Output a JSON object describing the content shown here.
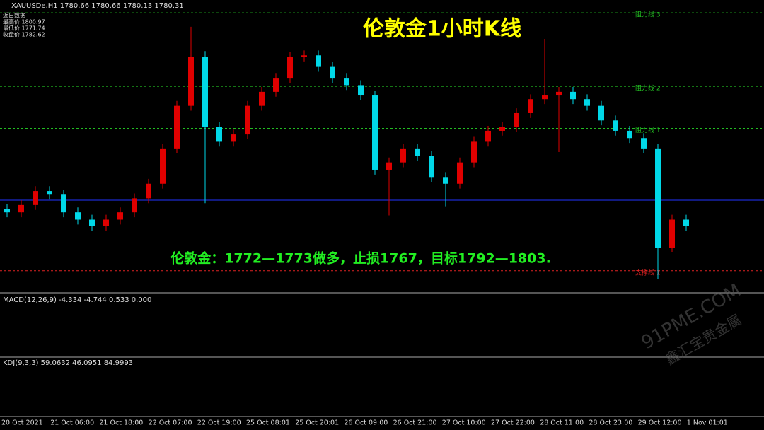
{
  "chart_data": {
    "type": "candlestick",
    "title": "伦敦金1小时K线",
    "symbol_header": "XAUUSDe,H1  1780.66 1780.66 1780.13 1780.31",
    "info": [
      "近日数据",
      "最高价 1800.97",
      "最低价 1771.74",
      "收盘价 1782.62"
    ],
    "annotation": "伦敦金：1772—1773做多，止损1767，目标1792—1803.",
    "up_color": "#e00000",
    "down_color": "#00d8e8",
    "ylim": [
      1769.5,
      1817.4
    ],
    "open": [
      1783.0,
      1782.5,
      1783.7,
      1786.0,
      1785.4,
      1782.5,
      1781.3,
      1780.2,
      1781.3,
      1782.5,
      1784.8,
      1787.2,
      1793.0,
      1800.0,
      1808.1,
      1796.5,
      1794.1,
      1795.3,
      1800.0,
      1802.3,
      1804.6,
      1808.1,
      1808.3,
      1806.4,
      1804.6,
      1803.4,
      1801.7,
      1789.5,
      1790.7,
      1793.0,
      1791.8,
      1788.3,
      1787.2,
      1790.7,
      1794.1,
      1795.9,
      1796.5,
      1798.8,
      1801.1,
      1801.7,
      1802.3,
      1801.1,
      1800.0,
      1797.6,
      1795.9,
      1794.7,
      1793.0,
      1776.7,
      1781.3
    ],
    "high": [
      1783.8,
      1784.5,
      1786.8,
      1786.8,
      1786.2,
      1783.3,
      1782.1,
      1782.1,
      1783.3,
      1785.6,
      1788.0,
      1793.8,
      1800.8,
      1813.0,
      1809.0,
      1797.3,
      1796.1,
      1800.8,
      1803.1,
      1805.4,
      1808.9,
      1809.1,
      1809.1,
      1807.2,
      1805.4,
      1804.2,
      1802.5,
      1791.5,
      1793.8,
      1793.8,
      1792.6,
      1789.1,
      1791.5,
      1794.9,
      1796.7,
      1797.3,
      1799.6,
      1801.9,
      1811.0,
      1803.1,
      1803.1,
      1801.9,
      1800.8,
      1798.4,
      1796.7,
      1795.5,
      1793.8,
      1782.1,
      1782.1
    ],
    "low": [
      1781.7,
      1781.7,
      1782.9,
      1784.6,
      1781.7,
      1780.5,
      1779.4,
      1779.4,
      1780.5,
      1781.7,
      1784.0,
      1786.4,
      1792.2,
      1799.2,
      1784.0,
      1793.3,
      1793.3,
      1794.5,
      1799.2,
      1801.5,
      1803.8,
      1807.3,
      1805.6,
      1803.8,
      1802.6,
      1800.9,
      1788.7,
      1782.0,
      1789.9,
      1791.0,
      1787.5,
      1783.5,
      1786.4,
      1789.9,
      1793.3,
      1795.1,
      1795.7,
      1798.0,
      1800.3,
      1792.4,
      1800.3,
      1799.2,
      1796.8,
      1795.1,
      1793.9,
      1792.2,
      1771.5,
      1775.9,
      1779.4
    ],
    "close": [
      1782.5,
      1783.7,
      1786.0,
      1785.4,
      1782.5,
      1781.3,
      1780.2,
      1781.3,
      1782.5,
      1784.8,
      1787.2,
      1793.0,
      1800.0,
      1808.1,
      1796.5,
      1794.1,
      1795.3,
      1800.0,
      1802.3,
      1804.6,
      1808.1,
      1808.3,
      1806.4,
      1804.6,
      1803.4,
      1801.7,
      1789.5,
      1790.7,
      1793.0,
      1791.8,
      1788.3,
      1787.2,
      1790.7,
      1794.1,
      1795.9,
      1796.5,
      1798.8,
      1801.1,
      1801.7,
      1802.3,
      1801.1,
      1800.0,
      1797.6,
      1795.9,
      1794.7,
      1793.0,
      1776.7,
      1781.3,
      1780.2
    ],
    "levels": [
      {
        "label": "阻力线 3",
        "value": 1815.3,
        "color": "#22bb22"
      },
      {
        "label": "阻力线 2",
        "value": 1803.2,
        "color": "#22bb22"
      },
      {
        "label": "阻力线 1",
        "value": 1796.3,
        "color": "#22bb22"
      },
      {
        "value": 1784.5,
        "color": "#2233ff"
      },
      {
        "label": "支撑线 1",
        "value": 1772.9,
        "color": "#dd2222"
      }
    ],
    "macd_header": "MACD(12,26,9) -4.334 -4.744 0.533 0.000",
    "kdj_header": "KDJ(9,3,3) 59.0632 46.0951 84.9993",
    "x_labels": [
      "20 Oct 2021",
      "21 Oct 06:00",
      "21 Oct 18:00",
      "22 Oct 07:00",
      "22 Oct 19:00",
      "25 Oct 08:01",
      "25 Oct 20:01",
      "26 Oct 09:00",
      "26 Oct 21:00",
      "27 Oct 10:00",
      "27 Oct 22:00",
      "28 Oct 11:00",
      "28 Oct 23:00",
      "29 Oct 12:00",
      "1 Nov 01:01"
    ],
    "watermark": [
      "91PME.COM",
      "鑫汇宝贵金属"
    ]
  }
}
